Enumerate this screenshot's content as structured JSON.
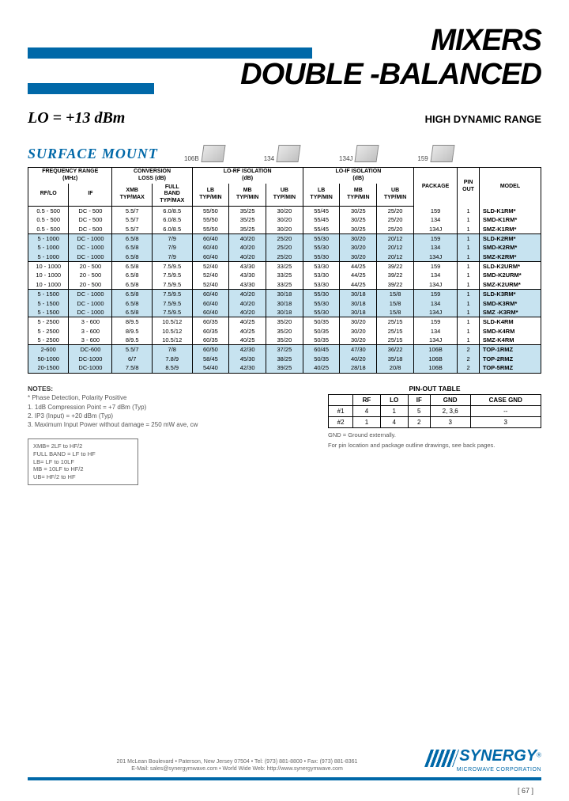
{
  "header": {
    "title1": "MIXERS",
    "title2": "DOUBLE -BALANCED",
    "lo": "LO = +13 dBm",
    "hdr": "HIGH DYNAMIC RANGE",
    "section": "SURFACE MOUNT"
  },
  "packages": [
    {
      "label": "106B"
    },
    {
      "label": "134"
    },
    {
      "label": "134J"
    },
    {
      "label": "159"
    }
  ],
  "colors": {
    "brand": "#0068a8",
    "alt_row": "#c7e3f0",
    "text": "#000000",
    "muted": "#555555"
  },
  "table": {
    "header_groups": [
      {
        "label": "FREQUENCY RANGE\n(MHz)",
        "span": 2
      },
      {
        "label": "CONVERSION\nLOSS (dB)",
        "span": 2
      },
      {
        "label": "LO-RF ISOLATION\n(dB)",
        "span": 3
      },
      {
        "label": "LO-IF ISOLATION\n(dB)",
        "span": 3
      },
      {
        "label": "PACKAGE",
        "span": 1
      },
      {
        "label": "PIN\nOUT",
        "span": 1
      },
      {
        "label": "MODEL",
        "span": 1
      }
    ],
    "sub_headers": [
      "RF/LO",
      "IF",
      "XMB\nTYP/MAX",
      "FULL\nBAND\nTYP/MAX",
      "LB\nTYP/MIN",
      "MB\nTYP/MIN",
      "UB\nTYP/MIN",
      "LB\nTYP/MIN",
      "MB\nTYP/MIN",
      "UB\nTYP/MIN",
      "",
      "",
      ""
    ],
    "groups": [
      {
        "alt": false,
        "rows": [
          [
            "0.5 - 500",
            "DC - 500",
            "5.5/7",
            "6.0/8.5",
            "55/50",
            "35/25",
            "30/20",
            "55/45",
            "30/25",
            "25/20",
            "159",
            "1",
            "SLD-K1RM*"
          ],
          [
            "0.5 - 500",
            "DC - 500",
            "5.5/7",
            "6.0/8.5",
            "55/50",
            "35/25",
            "30/20",
            "55/45",
            "30/25",
            "25/20",
            "134",
            "1",
            "SMD-K1RM*"
          ],
          [
            "0.5 - 500",
            "DC - 500",
            "5.5/7",
            "6.0/8.5",
            "55/50",
            "35/25",
            "30/20",
            "55/45",
            "30/25",
            "25/20",
            "134J",
            "1",
            "SMZ-K1RM*"
          ]
        ]
      },
      {
        "alt": true,
        "rows": [
          [
            "5 - 1000",
            "DC - 1000",
            "6.5/8",
            "7/9",
            "60/40",
            "40/20",
            "25/20",
            "55/30",
            "30/20",
            "20/12",
            "159",
            "1",
            "SLD-K2RM*"
          ],
          [
            "5 - 1000",
            "DC - 1000",
            "6.5/8",
            "7/9",
            "60/40",
            "40/20",
            "25/20",
            "55/30",
            "30/20",
            "20/12",
            "134",
            "1",
            "SMD-K2RM*"
          ],
          [
            "5 - 1000",
            "DC - 1000",
            "6.5/8",
            "7/9",
            "60/40",
            "40/20",
            "25/20",
            "55/30",
            "30/20",
            "20/12",
            "134J",
            "1",
            "SMZ-K2RM*"
          ]
        ]
      },
      {
        "alt": false,
        "rows": [
          [
            "10 - 1000",
            "20 - 500",
            "6.5/8",
            "7.5/9.5",
            "52/40",
            "43/30",
            "33/25",
            "53/30",
            "44/25",
            "39/22",
            "159",
            "1",
            "SLD-K2URM*"
          ],
          [
            "10 - 1000",
            "20 - 500",
            "6.5/8",
            "7.5/9.5",
            "52/40",
            "43/30",
            "33/25",
            "53/30",
            "44/25",
            "39/22",
            "134",
            "1",
            "SMD-K2URM*"
          ],
          [
            "10 - 1000",
            "20 - 500",
            "6.5/8",
            "7.5/9.5",
            "52/40",
            "43/30",
            "33/25",
            "53/30",
            "44/25",
            "39/22",
            "134J",
            "1",
            "SMZ-K2URM*"
          ]
        ]
      },
      {
        "alt": true,
        "rows": [
          [
            "5 - 1500",
            "DC - 1000",
            "6.5/8",
            "7.5/9.5",
            "60/40",
            "40/20",
            "30/18",
            "55/30",
            "30/18",
            "15/8",
            "159",
            "1",
            "SLD-K3RM*"
          ],
          [
            "5 - 1500",
            "DC - 1000",
            "6.5/8",
            "7.5/9.5",
            "60/40",
            "40/20",
            "30/18",
            "55/30",
            "30/18",
            "15/8",
            "134",
            "1",
            "SMD-K3RM*"
          ],
          [
            "5 - 1500",
            "DC - 1000",
            "6.5/8",
            "7.5/9.5",
            "60/40",
            "40/20",
            "30/18",
            "55/30",
            "30/18",
            "15/8",
            "134J",
            "1",
            "SMZ -K3RM*"
          ]
        ]
      },
      {
        "alt": false,
        "rows": [
          [
            "5 - 2500",
            "3 - 600",
            "8/9.5",
            "10.5/12",
            "60/35",
            "40/25",
            "35/20",
            "50/35",
            "30/20",
            "25/15",
            "159",
            "1",
            "SLD-K4RM"
          ],
          [
            "5 - 2500",
            "3 - 600",
            "8/9.5",
            "10.5/12",
            "60/35",
            "40/25",
            "35/20",
            "50/35",
            "30/20",
            "25/15",
            "134",
            "1",
            "SMD-K4RM"
          ],
          [
            "5 - 2500",
            "3 - 600",
            "8/9.5",
            "10.5/12",
            "60/35",
            "40/25",
            "35/20",
            "50/35",
            "30/20",
            "25/15",
            "134J",
            "1",
            "SMZ-K4RM"
          ]
        ]
      },
      {
        "alt": true,
        "rows": [
          [
            "2-600",
            "DC-600",
            "5.5/7",
            "7/8",
            "60/50",
            "42/30",
            "37/25",
            "60/45",
            "47/30",
            "36/22",
            "106B",
            "2",
            "TOP-1RMZ"
          ],
          [
            "50-1000",
            "DC-1000",
            "6/7",
            "7.8/9",
            "58/45",
            "45/30",
            "38/25",
            "50/35",
            "40/20",
            "35/18",
            "106B",
            "2",
            "TOP-2RMZ"
          ],
          [
            "20-1500",
            "DC-1000",
            "7.5/8",
            "8.5/9",
            "54/40",
            "42/30",
            "39/25",
            "40/25",
            "28/18",
            "20/8",
            "106B",
            "2",
            "TOP-5RMZ"
          ]
        ]
      }
    ]
  },
  "notes": {
    "heading": "NOTES:",
    "lines": [
      "*  Phase Detection, Polarity Positive",
      "1. 1dB Compression Point = +7 dBm (Typ)",
      "2. IP3 (Input) = +20 dBm (Typ)",
      "3. Maximum Input Power without damage = 250 mW ave, cw"
    ],
    "band_box": [
      "XMB= 2LF to HF/2",
      "FULL BAND = LF to HF",
      "LB= LF to 10LF",
      "MB = 10LF to HF/2",
      "UB= HF/2 to HF"
    ]
  },
  "pinout": {
    "title": "PIN-OUT TABLE",
    "headers": [
      "",
      "RF",
      "LO",
      "IF",
      "GND",
      "CASE GND"
    ],
    "rows": [
      [
        "#1",
        "4",
        "1",
        "5",
        "2, 3,6",
        "--"
      ],
      [
        "#2",
        "1",
        "4",
        "2",
        "3",
        "3"
      ]
    ],
    "note1": "GND = Ground externally.",
    "note2": "For pin location and package outline drawings, see back pages."
  },
  "footer": {
    "addr1": "201 McLean Boulevard • Paterson, New Jersey 07504 • Tel: (973) 881-8800 • Fax: (973) 881-8361",
    "addr2": "E-Mail: sales@synergymwave.com • World Wide Web: http://www.synergymwave.com",
    "logo": "SYNERGY",
    "logo_sub": "MICROWAVE CORPORATION",
    "page": "[ 67 ]"
  }
}
